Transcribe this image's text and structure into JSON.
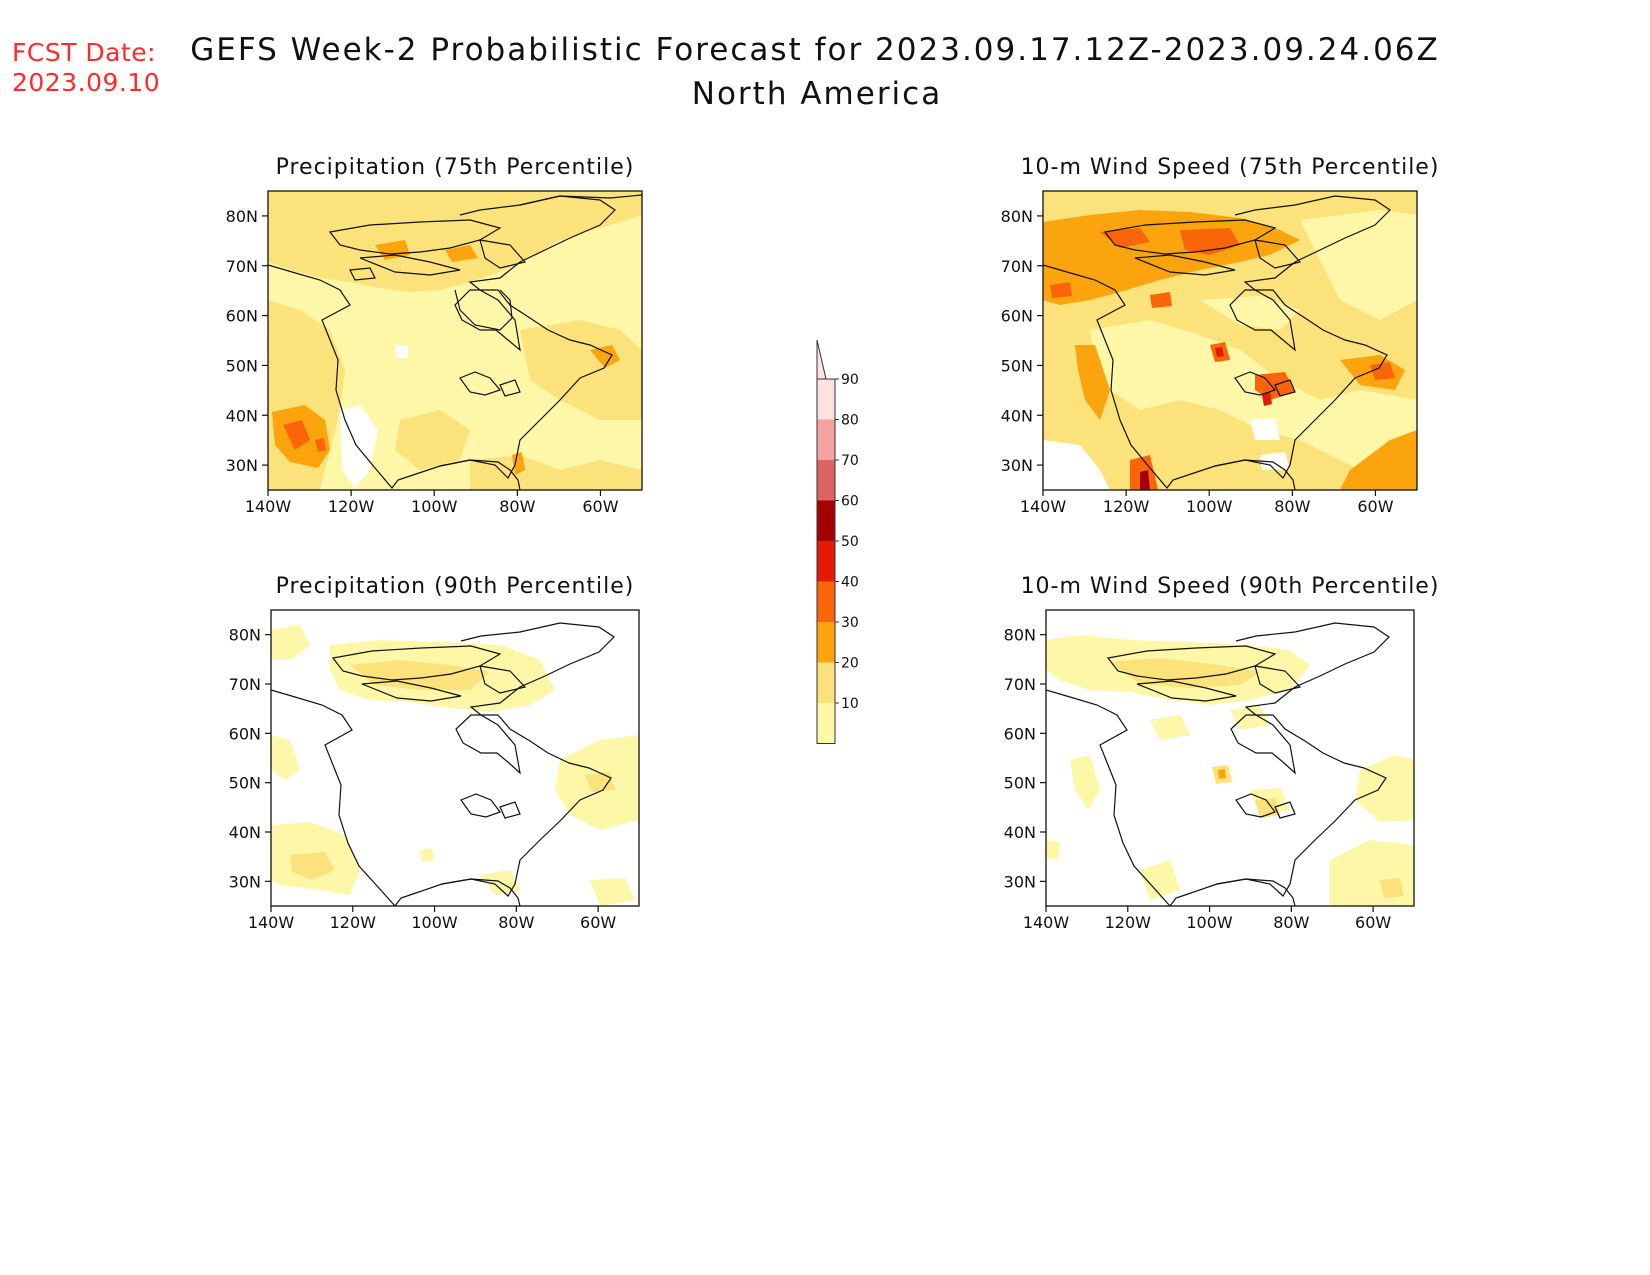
{
  "forecast_date_label": "FCST Date:",
  "forecast_date_value": "2023.09.10",
  "title": "GEFS Week-2 Probabilistic Forecast for 2023.09.17.12Z-2023.09.24.06Z",
  "subtitle": "North America",
  "colors": {
    "shade_10": "#fff7a8",
    "shade_20": "#fbe27a",
    "shade_30": "#fca40d",
    "shade_40": "#fb6509",
    "shade_50": "#e31a08",
    "shade_60": "#a50000",
    "shade_70": "#de6363",
    "shade_80": "#f4a3a3",
    "shade_90": "#fde2e2"
  },
  "chart_data": [
    {
      "type": "heatmap",
      "panel": "precip75",
      "title": "Precipitation (75th Percentile)",
      "x_ticks": [
        "140W",
        "120W",
        "100W",
        "80W",
        "60W"
      ],
      "y_ticks": [
        "30N",
        "40N",
        "50N",
        "60N",
        "70N",
        "80N"
      ],
      "lon_range": [
        -140,
        -50
      ],
      "lat_range": [
        25,
        85
      ],
      "levels": [
        10,
        20,
        30,
        40
      ]
    },
    {
      "type": "heatmap",
      "panel": "wind75",
      "title": "10-m Wind Speed (75th Percentile)",
      "x_ticks": [
        "140W",
        "120W",
        "100W",
        "80W",
        "60W"
      ],
      "y_ticks": [
        "30N",
        "40N",
        "50N",
        "60N",
        "70N",
        "80N"
      ],
      "lon_range": [
        -140,
        -50
      ],
      "lat_range": [
        25,
        85
      ],
      "levels": [
        10,
        20,
        30,
        40,
        50,
        60
      ]
    },
    {
      "type": "heatmap",
      "panel": "precip90",
      "title": "Precipitation (90th Percentile)",
      "x_ticks": [
        "140W",
        "120W",
        "100W",
        "80W",
        "60W"
      ],
      "y_ticks": [
        "30N",
        "40N",
        "50N",
        "60N",
        "70N",
        "80N"
      ],
      "lon_range": [
        -140,
        -50
      ],
      "lat_range": [
        25,
        85
      ],
      "levels": [
        10,
        20
      ]
    },
    {
      "type": "heatmap",
      "panel": "wind90",
      "title": "10-m Wind Speed (90th Percentile)",
      "x_ticks": [
        "140W",
        "120W",
        "100W",
        "80W",
        "60W"
      ],
      "y_ticks": [
        "30N",
        "40N",
        "50N",
        "60N",
        "70N",
        "80N"
      ],
      "lon_range": [
        -140,
        -50
      ],
      "lat_range": [
        25,
        85
      ],
      "levels": [
        10,
        20,
        30
      ]
    }
  ],
  "colorbar": {
    "labels": [
      "90",
      "80",
      "70",
      "60",
      "50",
      "40",
      "30",
      "20",
      "10"
    ]
  }
}
